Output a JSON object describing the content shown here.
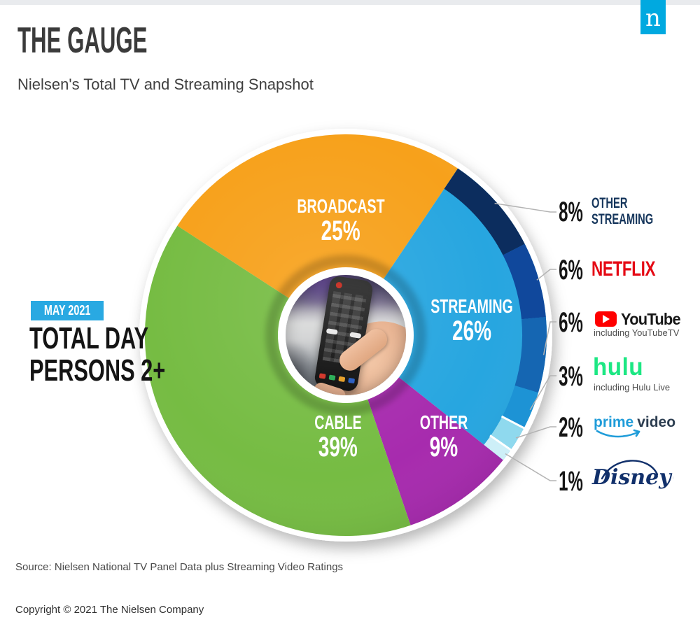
{
  "page": {
    "title": "THE GAUGE",
    "subtitle": "Nielsen's Total TV and Streaming Snapshot",
    "logo_letter": "n",
    "source": "Source: Nielsen National TV Panel Data plus Streaming Video Ratings",
    "copyright": "Copyright © 2021 The Nielsen Company"
  },
  "left_panel": {
    "period_badge": "MAY 2021",
    "audience_line1": "TOTAL DAY",
    "audience_line2": "PERSONS 2+"
  },
  "chart_data": {
    "type": "pie",
    "title": "The Gauge — Nielsen's Total TV and Streaming Snapshot",
    "period": "May 2021",
    "units": "percent of total TV viewing",
    "start_angle_deg": -57,
    "slices": [
      {
        "label": "BROADCAST",
        "value": 25,
        "pct_label": "25%",
        "color": "#F7A11B"
      },
      {
        "label": "STREAMING",
        "value": 26,
        "pct_label": "26%",
        "color": "#27A6E0"
      },
      {
        "label": "OTHER",
        "value": 9,
        "pct_label": "9%",
        "color": "#A72BAE"
      },
      {
        "label": "CABLE",
        "value": 39,
        "pct_label": "39%",
        "color": "#76BC43"
      }
    ],
    "streaming_breakdown": [
      {
        "label": "Other Streaming",
        "value": 8,
        "pct_label": "8%",
        "color": "#0C2D5E"
      },
      {
        "label": "Netflix",
        "value": 6,
        "pct_label": "6%",
        "color": "#10489C"
      },
      {
        "label": "YouTube",
        "value": 6,
        "pct_label": "6%",
        "color": "#1566B2"
      },
      {
        "label": "Hulu",
        "value": 3,
        "pct_label": "3%",
        "color": "#1D93D5"
      },
      {
        "label": "Prime Video",
        "value": 2,
        "pct_label": "2%",
        "color": "#8FD9EE"
      },
      {
        "label": "Disney+",
        "value": 1,
        "pct_label": "1%",
        "color": "#CDEFF8"
      }
    ]
  },
  "legend": [
    {
      "pct": "8%",
      "brand_line1": "OTHER",
      "brand_line2": "STREAMING"
    },
    {
      "pct": "6%",
      "brand": "NETFLIX"
    },
    {
      "pct": "6%",
      "brand": "YouTube",
      "note": "including YouTubeTV"
    },
    {
      "pct": "3%",
      "brand": "hulu",
      "note": "including Hulu Live"
    },
    {
      "pct": "2%",
      "brand_word1": "prime",
      "brand_word2": "video"
    },
    {
      "pct": "1%",
      "brand": "Disney+"
    }
  ]
}
